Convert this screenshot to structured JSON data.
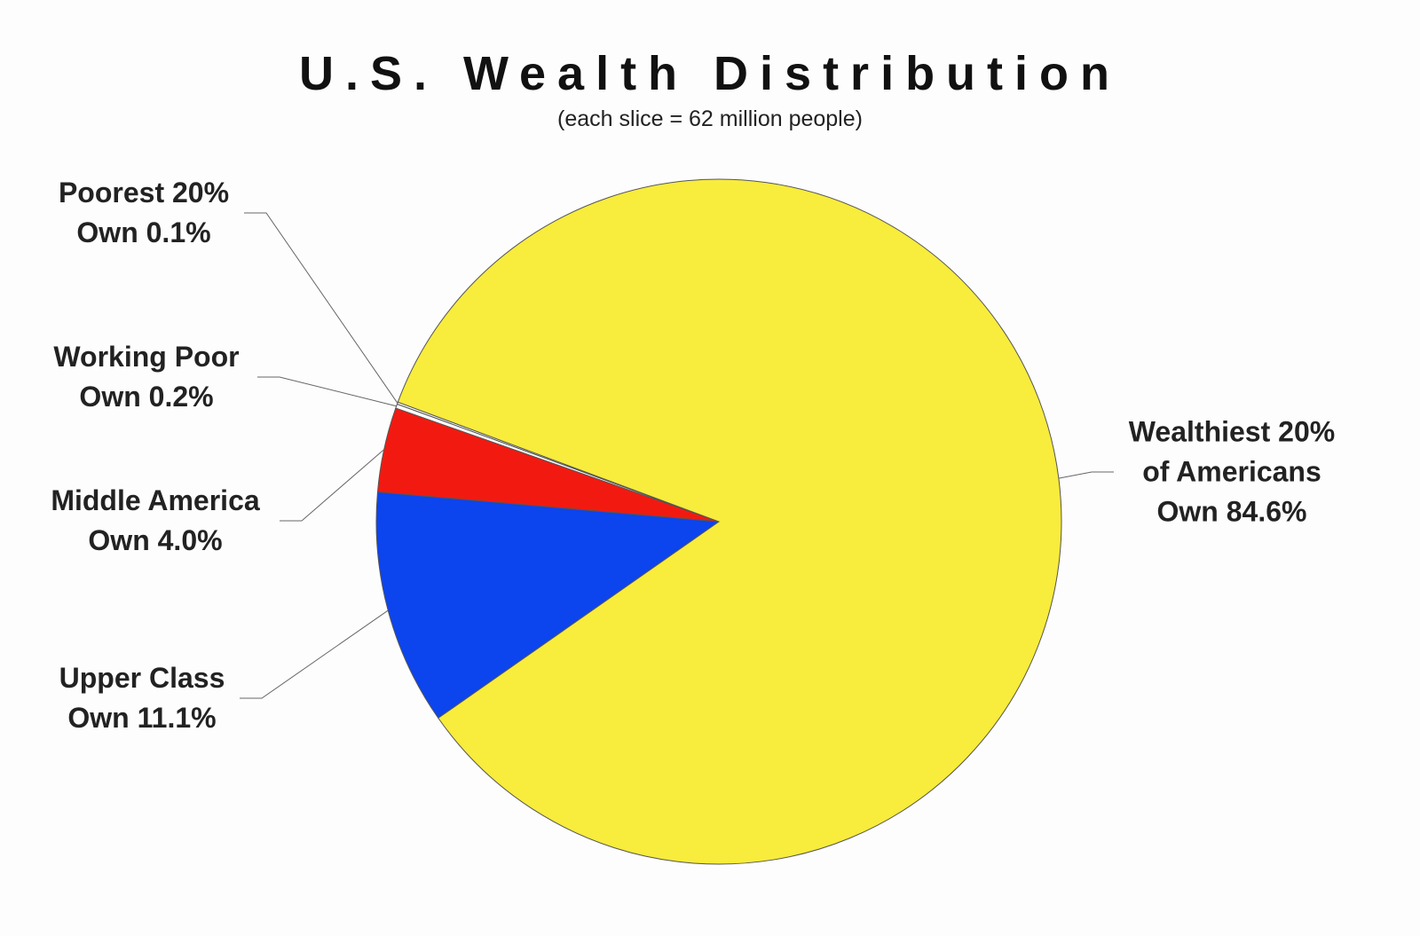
{
  "chart_data": {
    "type": "pie",
    "title": "U.S. Wealth Distribution",
    "subtitle": "(each slice = 62 million people)",
    "categories": [
      "Poorest 20%",
      "Working Poor",
      "Middle America",
      "Upper Class",
      "Wealthiest 20% of Americans"
    ],
    "values": [
      0.1,
      0.2,
      4.0,
      11.1,
      84.6
    ],
    "value_labels": [
      "Own 0.1%",
      "Own 0.2%",
      "Own 4.0%",
      "Own 11.1%",
      "Own 84.6%"
    ],
    "colors": [
      "#ffffff",
      "#ffffff",
      "#f21a10",
      "#0c44ee",
      "#f8ec3c"
    ]
  }
}
